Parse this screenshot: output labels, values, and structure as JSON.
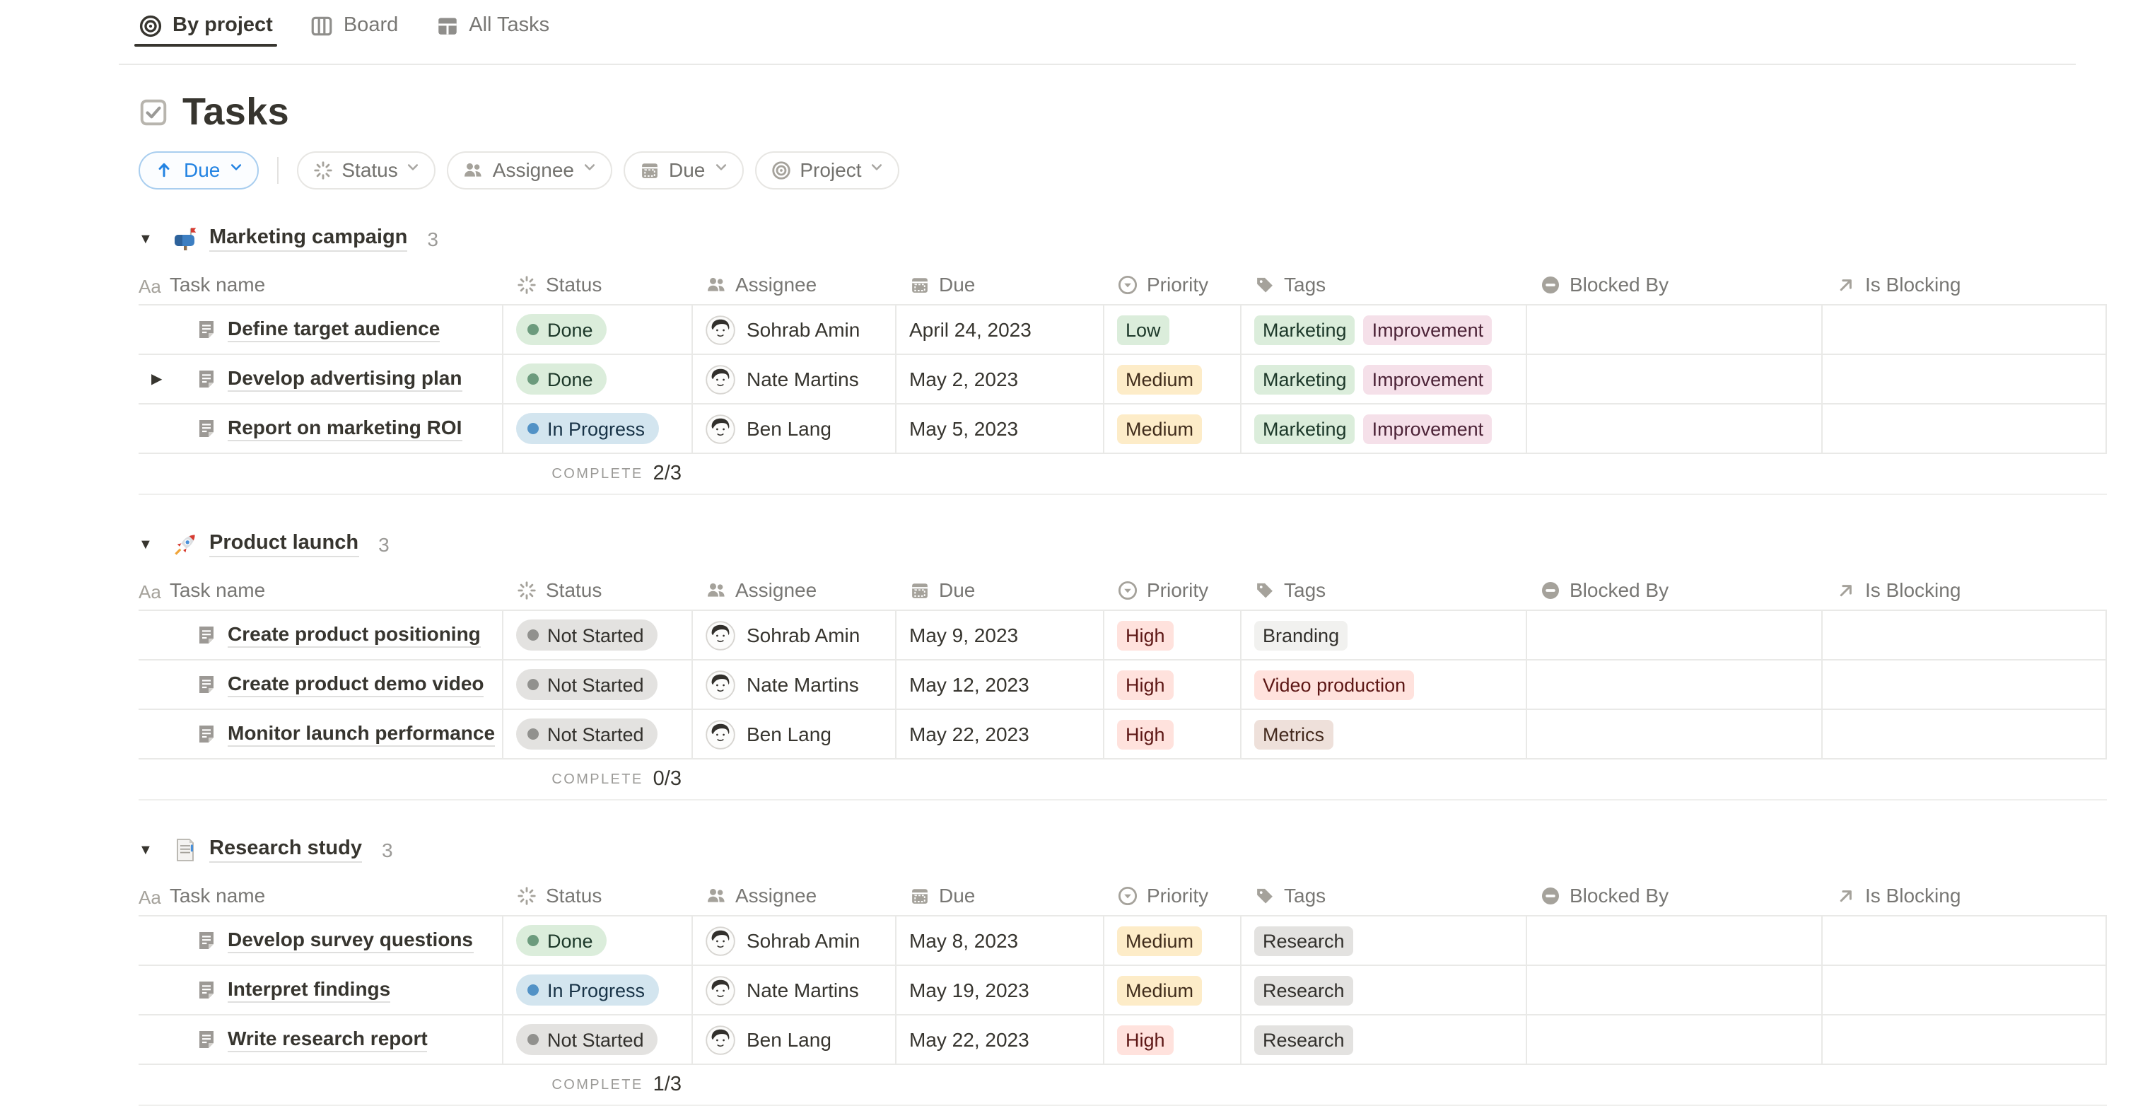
{
  "tabs": [
    {
      "label": "By project",
      "icon": "target-icon",
      "active": true
    },
    {
      "label": "Board",
      "icon": "board-icon",
      "active": false
    },
    {
      "label": "All Tasks",
      "icon": "table-icon",
      "active": false
    }
  ],
  "page": {
    "title": "Tasks",
    "icon": "checkbox-icon"
  },
  "toolbar": {
    "sort": {
      "label": "Due",
      "direction": "ascending",
      "icon": "arrow-up-icon"
    },
    "filters": [
      {
        "label": "Status",
        "icon": "status-spinner-icon"
      },
      {
        "label": "Assignee",
        "icon": "people-icon"
      },
      {
        "label": "Due",
        "icon": "calendar-icon"
      },
      {
        "label": "Project",
        "icon": "target-icon"
      }
    ]
  },
  "columns": [
    {
      "label": "Task name",
      "icon": "aa-icon"
    },
    {
      "label": "Status",
      "icon": "status-spinner-icon"
    },
    {
      "label": "Assignee",
      "icon": "people-icon"
    },
    {
      "label": "Due",
      "icon": "calendar-icon"
    },
    {
      "label": "Priority",
      "icon": "select-icon"
    },
    {
      "label": "Tags",
      "icon": "tag-icon"
    },
    {
      "label": "Blocked By",
      "icon": "blocked-icon"
    },
    {
      "label": "Is Blocking",
      "icon": "arrow-up-right-icon"
    }
  ],
  "labels": {
    "complete": "COMPLETE"
  },
  "groups": [
    {
      "name": "Marketing campaign",
      "emoji": "mailbox",
      "count": "3",
      "complete": "2/3",
      "rows": [
        {
          "task": "Define target audience",
          "expand": false,
          "status": "Done",
          "assignee": "Sohrab Amin",
          "due": "April 24, 2023",
          "priority": "Low",
          "tags": [
            "Marketing",
            "Improvement"
          ]
        },
        {
          "task": "Develop advertising plan",
          "expand": true,
          "status": "Done",
          "assignee": "Nate Martins",
          "due": "May 2, 2023",
          "priority": "Medium",
          "tags": [
            "Marketing",
            "Improvement"
          ]
        },
        {
          "task": "Report on marketing ROI",
          "expand": false,
          "status": "In Progress",
          "assignee": "Ben Lang",
          "due": "May 5, 2023",
          "priority": "Medium",
          "tags": [
            "Marketing",
            "Improvement"
          ]
        }
      ]
    },
    {
      "name": "Product launch",
      "emoji": "rocket",
      "count": "3",
      "complete": "0/3",
      "rows": [
        {
          "task": "Create product positioning",
          "expand": false,
          "status": "Not Started",
          "assignee": "Sohrab Amin",
          "due": "May 9, 2023",
          "priority": "High",
          "tags": [
            "Branding"
          ]
        },
        {
          "task": "Create product demo video",
          "expand": false,
          "status": "Not Started",
          "assignee": "Nate Martins",
          "due": "May 12, 2023",
          "priority": "High",
          "tags": [
            "Video production"
          ]
        },
        {
          "task": "Monitor launch performance",
          "expand": false,
          "status": "Not Started",
          "assignee": "Ben Lang",
          "due": "May 22, 2023",
          "priority": "High",
          "tags": [
            "Metrics"
          ]
        }
      ]
    },
    {
      "name": "Research study",
      "emoji": "page",
      "count": "3",
      "complete": "1/3",
      "rows": [
        {
          "task": "Develop survey questions",
          "expand": false,
          "status": "Done",
          "assignee": "Sohrab Amin",
          "due": "May 8, 2023",
          "priority": "Medium",
          "tags": [
            "Research"
          ]
        },
        {
          "task": "Interpret findings",
          "expand": false,
          "status": "In Progress",
          "assignee": "Nate Martins",
          "due": "May 19, 2023",
          "priority": "Medium",
          "tags": [
            "Research"
          ]
        },
        {
          "task": "Write research report",
          "expand": false,
          "status": "Not Started",
          "assignee": "Ben Lang",
          "due": "May 22, 2023",
          "priority": "High",
          "tags": [
            "Research"
          ]
        }
      ]
    }
  ],
  "tag_colors": {
    "Marketing": "green",
    "Improvement": "pink",
    "Branding": "light_gray",
    "Video production": "red",
    "Metrics": "brown",
    "Research": "gray"
  },
  "palette": {
    "accent_blue": "#2383E2",
    "text_dark": "#37352F",
    "text_gray": "#787774",
    "border": "#E9E9E7",
    "status": {
      "Done": {
        "bg": "#DBEDDB",
        "dot": "#6C9B7D",
        "text": "#1C3829"
      },
      "In Progress": {
        "bg": "#D3E5EF",
        "dot": "#5292C6",
        "text": "#183347"
      },
      "Not Started": {
        "bg": "#E3E2E0",
        "dot": "#91918E",
        "text": "#32302C"
      }
    },
    "priority": {
      "Low": {
        "bg": "#DBEDDB",
        "text": "#1C3829"
      },
      "Medium": {
        "bg": "#FDECC8",
        "text": "#402C1B"
      },
      "High": {
        "bg": "#FFE2DD",
        "text": "#5D1715"
      }
    },
    "tags": {
      "green": {
        "bg": "#DBEDDB",
        "text": "#1C3829"
      },
      "pink": {
        "bg": "#F5E0E9",
        "text": "#4C2337"
      },
      "light_gray": {
        "bg": "#F1F1EF",
        "text": "#32302C"
      },
      "red": {
        "bg": "#FFE2DD",
        "text": "#5D1715"
      },
      "brown": {
        "bg": "#EEE0DA",
        "text": "#442A1E"
      },
      "gray": {
        "bg": "#E3E2E0",
        "text": "#32302C"
      }
    }
  }
}
